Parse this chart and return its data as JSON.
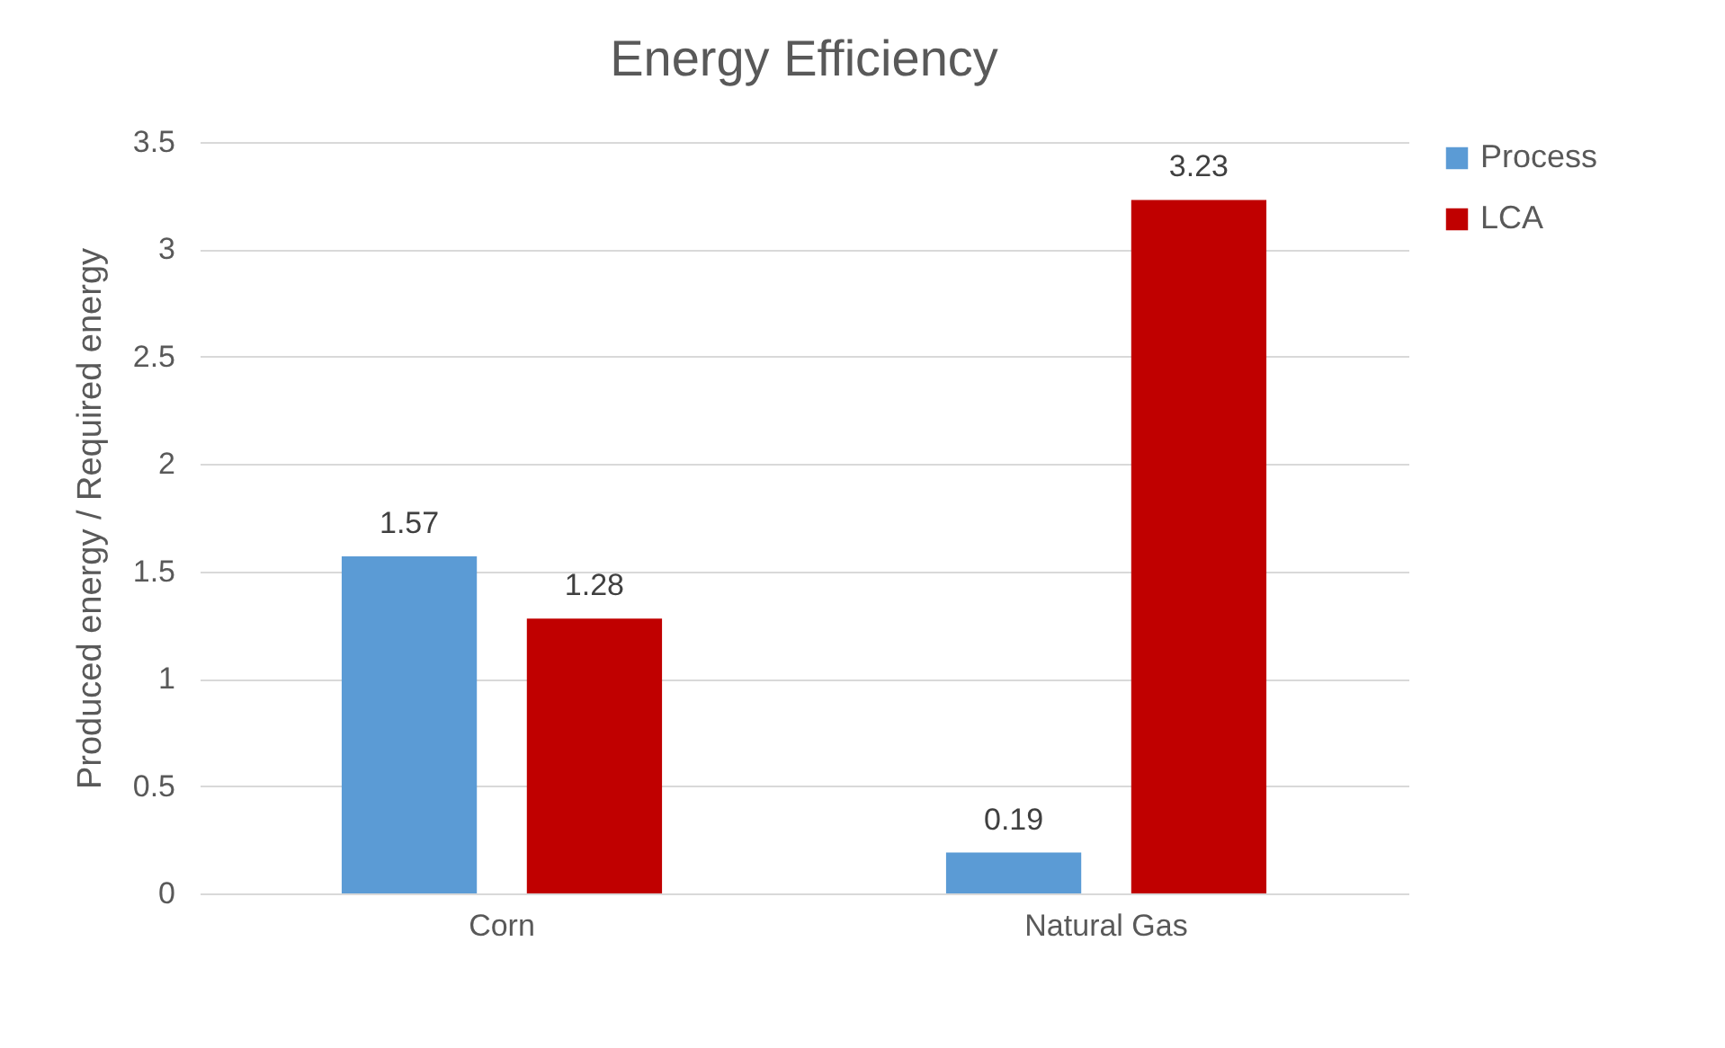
{
  "chart_data": {
    "type": "bar",
    "title": "Energy Efficiency",
    "ylabel": "Produced energy / Required energy",
    "categories": [
      "Corn",
      "Natural Gas"
    ],
    "series": [
      {
        "name": "Process",
        "color": "#5b9bd5",
        "values": [
          1.57,
          0.19
        ]
      },
      {
        "name": "LCA",
        "color": "#c00000",
        "values": [
          1.28,
          3.23
        ]
      }
    ],
    "ylim": [
      0,
      3.5
    ],
    "yticks": [
      0,
      0.5,
      1,
      1.5,
      2,
      2.5,
      3,
      3.5
    ],
    "grid": "y",
    "legend": "right",
    "data_labels": true
  }
}
